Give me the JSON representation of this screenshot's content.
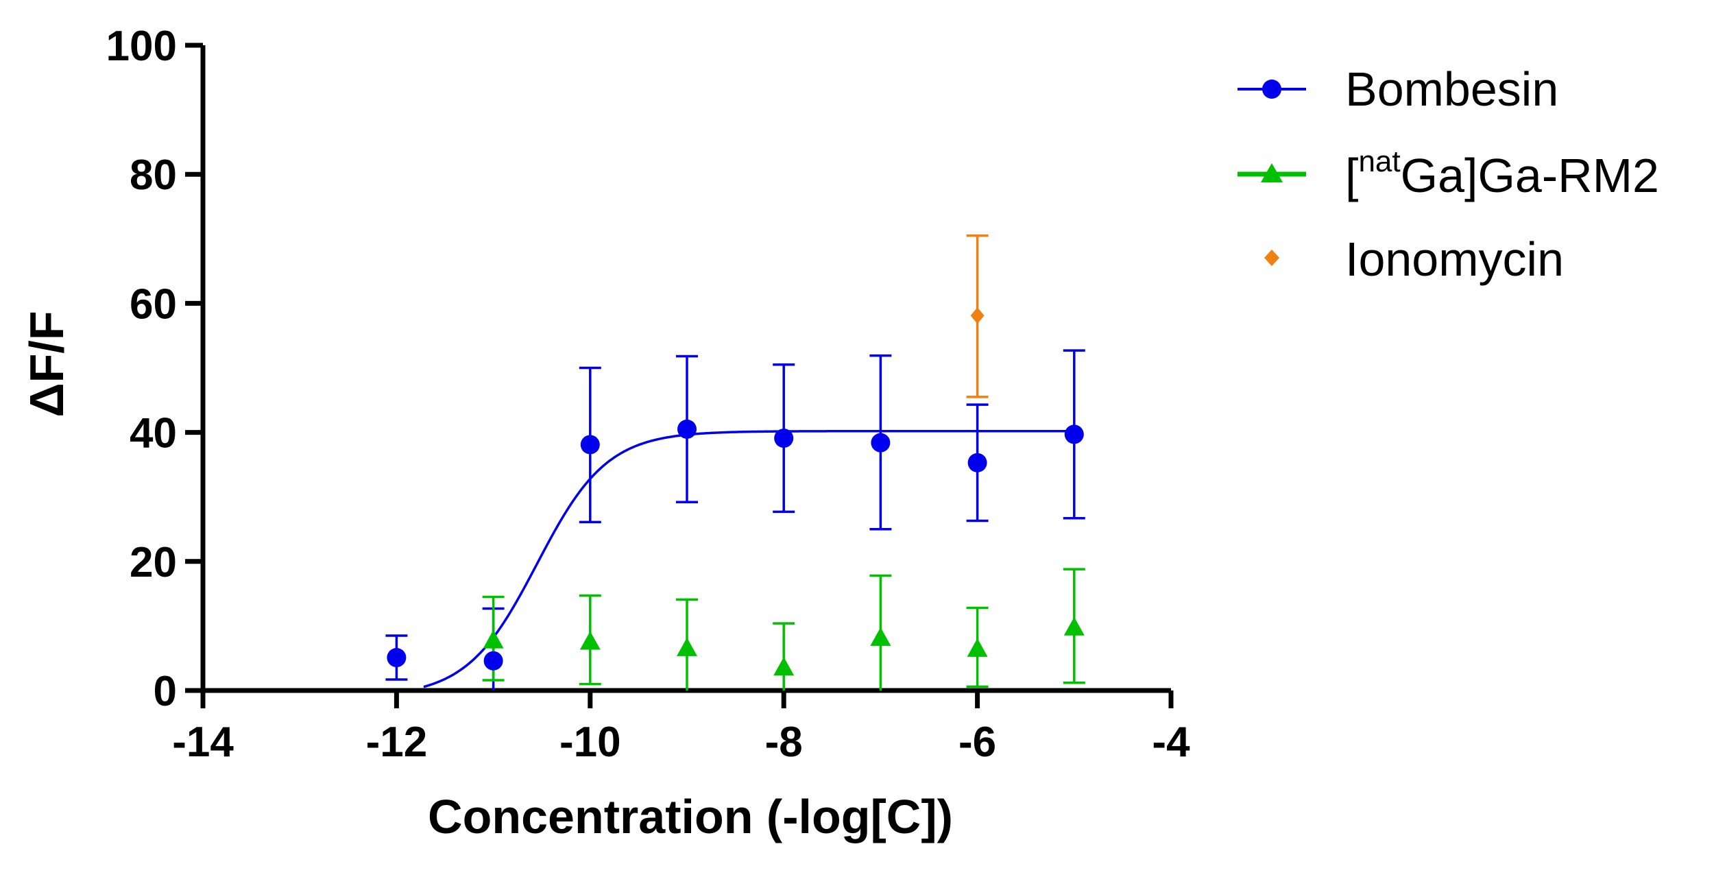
{
  "chart_data": {
    "type": "scatter",
    "title": "",
    "xlabel": "Concentration (-log[C])",
    "ylabel": "ΔF/F",
    "xlim": [
      -14,
      -4
    ],
    "ylim": [
      0,
      100
    ],
    "x_ticks": [
      -14,
      -12,
      -10,
      -8,
      -6,
      -4
    ],
    "y_ticks": [
      0,
      20,
      40,
      60,
      80,
      100
    ],
    "x_tick_labels": [
      "-14",
      "-12",
      "-10",
      "-8",
      "-6",
      "-4"
    ],
    "y_tick_labels": [
      "0",
      "20",
      "40",
      "60",
      "80",
      "100"
    ],
    "grid": false,
    "legend_position": "top-right outside",
    "series": [
      {
        "name": "Bombesin",
        "color": "#0000EE",
        "marker": "circle",
        "points": [
          {
            "x": -12,
            "y": 5.1,
            "err_low": 3.4,
            "err_high": 3.4
          },
          {
            "x": -11,
            "y": 4.6,
            "err_low": 4.6,
            "err_high": 8.1
          },
          {
            "x": -10,
            "y": 38.1,
            "err_low": 12.0,
            "err_high": 11.9
          },
          {
            "x": -9,
            "y": 40.5,
            "err_low": 11.3,
            "err_high": 11.3
          },
          {
            "x": -8,
            "y": 39.1,
            "err_low": 11.4,
            "err_high": 11.4
          },
          {
            "x": -7,
            "y": 38.4,
            "err_low": 13.4,
            "err_high": 13.5
          },
          {
            "x": -6,
            "y": 35.3,
            "err_low": 9.0,
            "err_high": 9.0
          },
          {
            "x": -5,
            "y": 39.7,
            "err_low": 13.0,
            "err_high": 13.0
          }
        ],
        "fit": {
          "type": "sigmoidal dose-response",
          "bottom": -1.0,
          "top": 40.2,
          "logEC50": -10.55,
          "hill": 1.2,
          "x_start": -11.72,
          "x_end": -4.98
        }
      },
      {
        "name": "[natGa]Ga-RM2",
        "name_parts": [
          "[",
          "nat",
          "Ga]Ga-RM2"
        ],
        "color": "#00C000",
        "marker": "triangle",
        "points": [
          {
            "x": -11,
            "y": 7.8,
            "err_low": 6.2,
            "err_high": 6.7
          },
          {
            "x": -10,
            "y": 7.6,
            "err_low": 6.6,
            "err_high": 7.1
          },
          {
            "x": -9,
            "y": 6.6,
            "err_low": 6.6,
            "err_high": 7.5
          },
          {
            "x": -8,
            "y": 3.6,
            "err_low": 3.6,
            "err_high": 6.8
          },
          {
            "x": -7,
            "y": 8.2,
            "err_low": 8.2,
            "err_high": 9.6
          },
          {
            "x": -6,
            "y": 6.5,
            "err_low": 5.9,
            "err_high": 6.3
          },
          {
            "x": -5,
            "y": 9.8,
            "err_low": 8.6,
            "err_high": 9.0
          }
        ]
      },
      {
        "name": "Ionomycin",
        "color": "#F08010",
        "marker": "diamond",
        "points": [
          {
            "x": -6,
            "y": 58.1,
            "err_low": 12.6,
            "err_high": 12.4
          }
        ]
      }
    ]
  }
}
